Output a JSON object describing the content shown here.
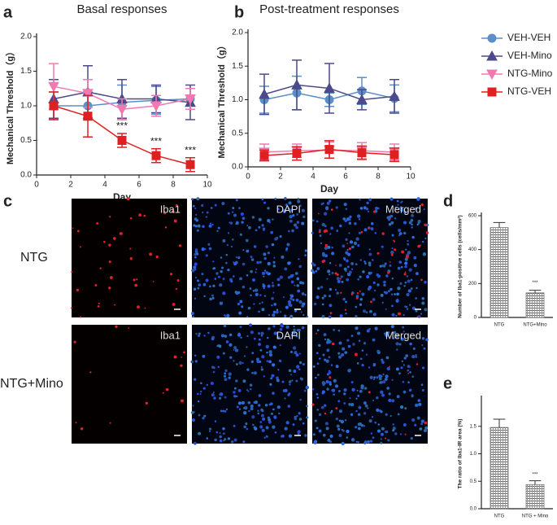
{
  "chart_data": [
    {
      "type": "line",
      "panel_label": "a",
      "title": "Basal responses",
      "x_label": "Day",
      "y_label": "Mechanical Threshold（g）",
      "x": [
        1,
        3,
        5,
        7,
        9
      ],
      "xlim": [
        0,
        10
      ],
      "xticks": [
        0,
        2,
        4,
        6,
        8,
        10
      ],
      "ylim": [
        0,
        2
      ],
      "yticks": [
        {
          "value": 0,
          "label": "0.0"
        },
        {
          "value": 0.5,
          "label": "0.5"
        },
        {
          "value": 1,
          "label": "1.0"
        },
        {
          "value": 1.5,
          "label": "1.5"
        },
        {
          "value": 2,
          "label": "2.0"
        }
      ],
      "series": [
        {
          "color": "#5b8fc7",
          "marker": "circle",
          "values": [
            1.0,
            1.0,
            1.05,
            1.08,
            1.1
          ],
          "errors": [
            0.2,
            0.2,
            0.25,
            0.2,
            0.15
          ]
        },
        {
          "color": "#4b4a8a",
          "marker": "triangle",
          "values": [
            1.1,
            1.2,
            1.1,
            1.1,
            1.05
          ],
          "errors": [
            0.28,
            0.38,
            0.28,
            0.2,
            0.25
          ]
        },
        {
          "color": "#f07ab0",
          "marker": "triangle-down",
          "values": [
            1.28,
            1.18,
            0.95,
            1.0,
            1.1
          ],
          "errors": [
            0.33,
            0.2,
            0.15,
            0.15,
            0.15
          ]
        },
        {
          "color": "#e02020",
          "marker": "square",
          "values": [
            1.0,
            0.85,
            0.5,
            0.28,
            0.15
          ],
          "errors": [
            0.2,
            0.3,
            0.1,
            0.1,
            0.1
          ]
        }
      ],
      "annotations": [
        {
          "x": 5,
          "y": 0.7,
          "text": "***"
        },
        {
          "x": 7,
          "y": 0.48,
          "text": "***"
        },
        {
          "x": 9,
          "y": 0.35,
          "text": "***"
        }
      ]
    },
    {
      "type": "line",
      "panel_label": "b",
      "title": "Post-treatment responses",
      "x_label": "Day",
      "y_label": "Mechanical Threshold（g）",
      "x": [
        1,
        3,
        5,
        7,
        9
      ],
      "xlim": [
        0,
        10
      ],
      "xticks": [
        0,
        2,
        4,
        6,
        8,
        10
      ],
      "ylim": [
        0,
        2
      ],
      "yticks": [
        {
          "value": 0,
          "label": "0.0"
        },
        {
          "value": 0.5,
          "label": "0.5"
        },
        {
          "value": 1,
          "label": "1.0"
        },
        {
          "value": 1.5,
          "label": "1.5"
        },
        {
          "value": 2,
          "label": "2.0"
        }
      ],
      "legend": "outside-right",
      "series": [
        {
          "name": "VEH-VEH",
          "color": "#5b8fc7",
          "marker": "circle",
          "values": [
            1.0,
            1.1,
            1.0,
            1.13,
            1.02
          ],
          "errors": [
            0.2,
            0.25,
            0.1,
            0.2,
            0.2
          ]
        },
        {
          "name": "VEH-Mino",
          "color": "#4b4a8a",
          "marker": "triangle",
          "values": [
            1.08,
            1.22,
            1.17,
            1.0,
            1.05
          ],
          "errors": [
            0.3,
            0.37,
            0.37,
            0.15,
            0.25
          ]
        },
        {
          "name": "NTG-Mino",
          "color": "#f07ab0",
          "marker": "triangle-down",
          "values": [
            0.22,
            0.24,
            0.25,
            0.24,
            0.22
          ],
          "errors": [
            0.12,
            0.1,
            0.12,
            0.12,
            0.12
          ]
        },
        {
          "name": "NTG-VEH",
          "color": "#e02020",
          "marker": "square",
          "values": [
            0.17,
            0.2,
            0.26,
            0.21,
            0.18
          ],
          "errors": [
            0.08,
            0.1,
            0.13,
            0.1,
            0.1
          ]
        }
      ]
    },
    {
      "type": "bar",
      "panel_label": "d",
      "y_label": "Number of Iba1-positive cells (cells/mm²)",
      "categories": [
        "NTG",
        "NTG+Mino"
      ],
      "values": [
        530,
        145
      ],
      "errors": [
        30,
        15
      ],
      "color": "#777777",
      "ylim": [
        0,
        600
      ],
      "yticks": [
        0,
        200,
        400,
        600
      ],
      "annotations": [
        {
          "x": 1,
          "y": 205,
          "text": "***"
        }
      ]
    },
    {
      "type": "bar",
      "panel_label": "e",
      "y_label": "The ratio of Iba1-IR area (%)",
      "categories": [
        "NTG",
        "NTG + Mino"
      ],
      "values": [
        1.48,
        0.44
      ],
      "errors": [
        0.15,
        0.07
      ],
      "color": "#777777",
      "ylim": [
        0,
        2
      ],
      "yticks": [
        {
          "value": 0,
          "label": "0.0"
        },
        {
          "value": 0.5,
          "label": "0.5"
        },
        {
          "value": 1,
          "label": "1.0"
        },
        {
          "value": 1.5,
          "label": "1.5"
        }
      ],
      "annotations": [
        {
          "x": 1,
          "y": 0.62,
          "text": "***"
        }
      ]
    }
  ],
  "micrographs": {
    "panel_label": "c",
    "rows": [
      "NTG",
      "NTG+Mino"
    ],
    "columns": [
      "Iba1",
      "DAPI",
      "Merged"
    ]
  }
}
